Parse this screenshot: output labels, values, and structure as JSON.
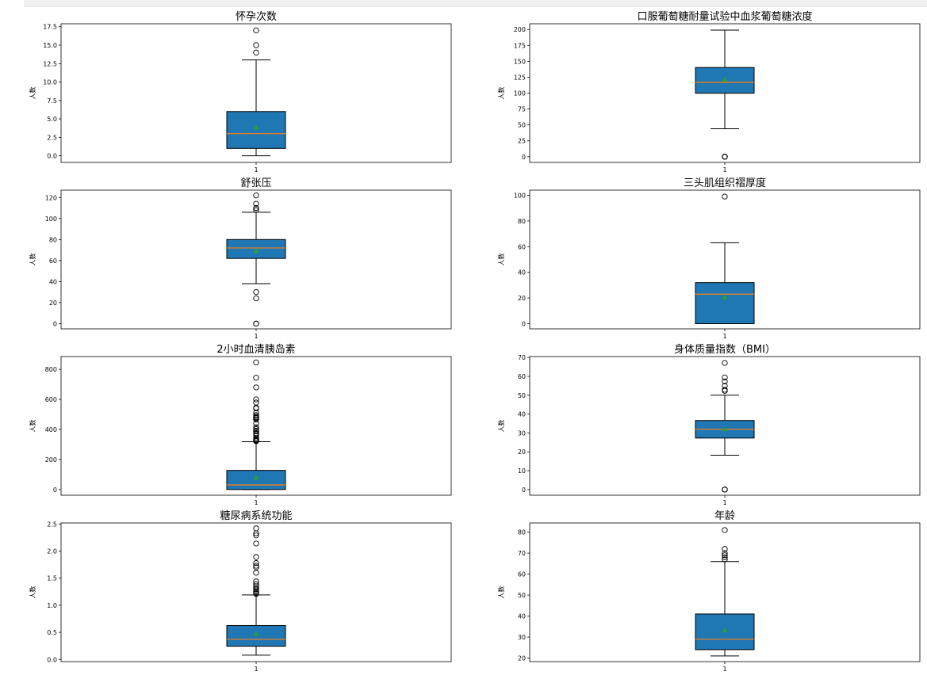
{
  "colors": {
    "box": "#1f77b4",
    "median": "#ff7f0e",
    "mean": "#2ca02c",
    "outline": "#000000"
  },
  "chart_data": [
    {
      "type": "box",
      "title": "怀孕次数",
      "ylabel": "人数",
      "xtick": "1",
      "ylim": [
        -0.9,
        17.9
      ],
      "yticks": [
        "0.0",
        "2.5",
        "5.0",
        "7.5",
        "10.0",
        "12.5",
        "15.0",
        "17.5"
      ],
      "stats": {
        "whislo": 0,
        "q1": 1,
        "med": 3,
        "mean": 3.85,
        "q3": 6,
        "whishi": 13
      },
      "fliers": [
        14,
        15,
        17
      ]
    },
    {
      "type": "box",
      "title": "口服葡萄糖耐量试验中血浆葡萄糖浓度",
      "ylabel": "人数",
      "xtick": "1",
      "ylim": [
        -9,
        209
      ],
      "yticks": [
        "0",
        "25",
        "50",
        "75",
        "100",
        "125",
        "150",
        "175",
        "200"
      ],
      "stats": {
        "whislo": 44,
        "q1": 99.75,
        "med": 117,
        "mean": 120.9,
        "q3": 140.25,
        "whishi": 199
      },
      "fliers": [
        0,
        0,
        0,
        0,
        0
      ]
    },
    {
      "type": "box",
      "title": "舒张压",
      "ylabel": "人数",
      "xtick": "1",
      "ylim": [
        -5,
        127
      ],
      "yticks": [
        "0",
        "20",
        "40",
        "60",
        "80",
        "100",
        "120"
      ],
      "stats": {
        "whislo": 38,
        "q1": 62,
        "med": 72,
        "mean": 69.1,
        "q3": 80,
        "whishi": 106
      },
      "fliers": [
        0,
        0,
        24,
        30,
        108,
        110,
        110,
        114,
        122
      ]
    },
    {
      "type": "box",
      "title": "三头肌组织褶厚度",
      "ylabel": "人数",
      "xtick": "1",
      "ylim": [
        -4,
        104
      ],
      "yticks": [
        "0",
        "20",
        "40",
        "60",
        "80",
        "100"
      ],
      "stats": {
        "whislo": 0,
        "q1": 0,
        "med": 23,
        "mean": 20.5,
        "q3": 32,
        "whishi": 63
      },
      "fliers": [
        99
      ]
    },
    {
      "type": "box",
      "title": "2小时血清胰岛素",
      "ylabel": "人数",
      "xtick": "1",
      "ylim": [
        -38,
        885
      ],
      "yticks": [
        "0",
        "200",
        "400",
        "600",
        "800"
      ],
      "stats": {
        "whislo": 0,
        "q1": 0,
        "med": 30.5,
        "mean": 79.8,
        "q3": 127.25,
        "whishi": 318
      },
      "fliers": [
        321,
        325,
        326,
        328,
        330,
        335,
        342,
        360,
        370,
        375,
        387,
        392,
        402,
        415,
        440,
        465,
        474,
        478,
        480,
        485,
        495,
        510,
        540,
        545,
        579,
        600,
        680,
        744,
        846
      ]
    },
    {
      "type": "box",
      "title": "身体质量指数（BMI）",
      "ylabel": "人数",
      "xtick": "1",
      "ylim": [
        -3,
        70.5
      ],
      "yticks": [
        "0",
        "10",
        "20",
        "30",
        "40",
        "50",
        "60",
        "70"
      ],
      "stats": {
        "whislo": 18.2,
        "q1": 27.3,
        "med": 32,
        "mean": 32.0,
        "q3": 36.6,
        "whishi": 50
      },
      "fliers": [
        0,
        0,
        0,
        52.3,
        52.9,
        55,
        57.3,
        59.4,
        67.1
      ]
    },
    {
      "type": "box",
      "title": "糖尿病系统功能",
      "ylabel": "人数",
      "xtick": "1",
      "ylim": [
        -0.04,
        2.52
      ],
      "yticks": [
        "0.0",
        "0.5",
        "1.0",
        "1.5",
        "2.0",
        "2.5"
      ],
      "stats": {
        "whislo": 0.078,
        "q1": 0.244,
        "med": 0.372,
        "mean": 0.47,
        "q3": 0.626,
        "whishi": 1.19
      },
      "fliers": [
        1.21,
        1.22,
        1.25,
        1.26,
        1.29,
        1.32,
        1.35,
        1.39,
        1.44,
        1.6,
        1.7,
        1.73,
        1.78,
        1.89,
        2.14,
        2.29,
        2.33,
        2.42
      ]
    },
    {
      "type": "box",
      "title": "年龄",
      "ylabel": "人数",
      "xtick": "1",
      "ylim": [
        18.3,
        84.4
      ],
      "yticks": [
        "20",
        "30",
        "40",
        "50",
        "60",
        "70",
        "80"
      ],
      "stats": {
        "whislo": 21,
        "q1": 24,
        "med": 29,
        "mean": 33.2,
        "q3": 41,
        "whishi": 66
      },
      "fliers": [
        67,
        68,
        69,
        70,
        72,
        81
      ]
    }
  ]
}
